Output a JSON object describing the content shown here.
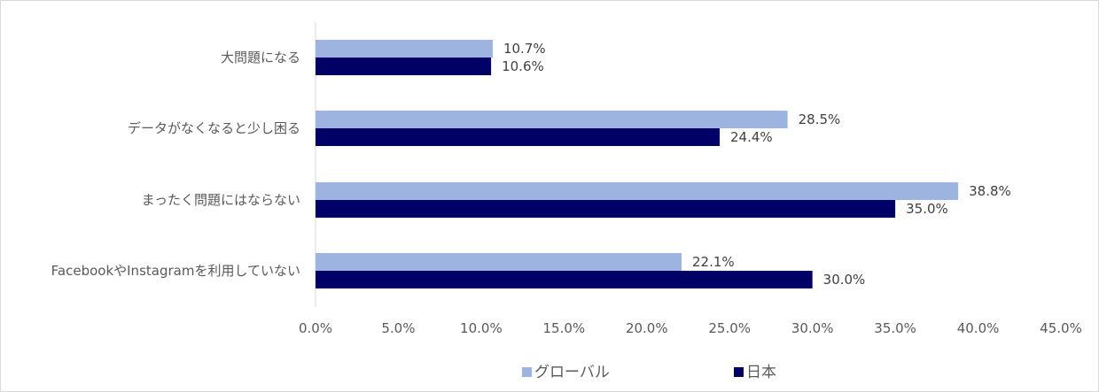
{
  "chart_data": {
    "type": "bar",
    "orientation": "horizontal",
    "categories": [
      "大問題になる",
      "データがなくなると少し困る",
      "まったく問題にはならない",
      "FacebookやInstagramを利用していない"
    ],
    "series": [
      {
        "name": "グローバル",
        "color": "#9db3e0",
        "values": [
          10.7,
          28.5,
          38.8,
          22.1
        ],
        "labels": [
          "10.7%",
          "28.5%",
          "38.8%",
          "22.1%"
        ]
      },
      {
        "name": "日本",
        "color": "#000066",
        "values": [
          10.6,
          24.4,
          35.0,
          30.0
        ],
        "labels": [
          "10.6%",
          "24.4%",
          "35.0%",
          "30.0%"
        ]
      }
    ],
    "xlim": [
      0,
      45
    ],
    "ticks": [
      0,
      5,
      10,
      15,
      20,
      25,
      30,
      35,
      40,
      45
    ],
    "tick_labels": [
      "0.0%",
      "5.0%",
      "10.0%",
      "15.0%",
      "20.0%",
      "25.0%",
      "30.0%",
      "35.0%",
      "40.0%",
      "45.0%"
    ],
    "grid": false,
    "legend_position": "bottom"
  }
}
